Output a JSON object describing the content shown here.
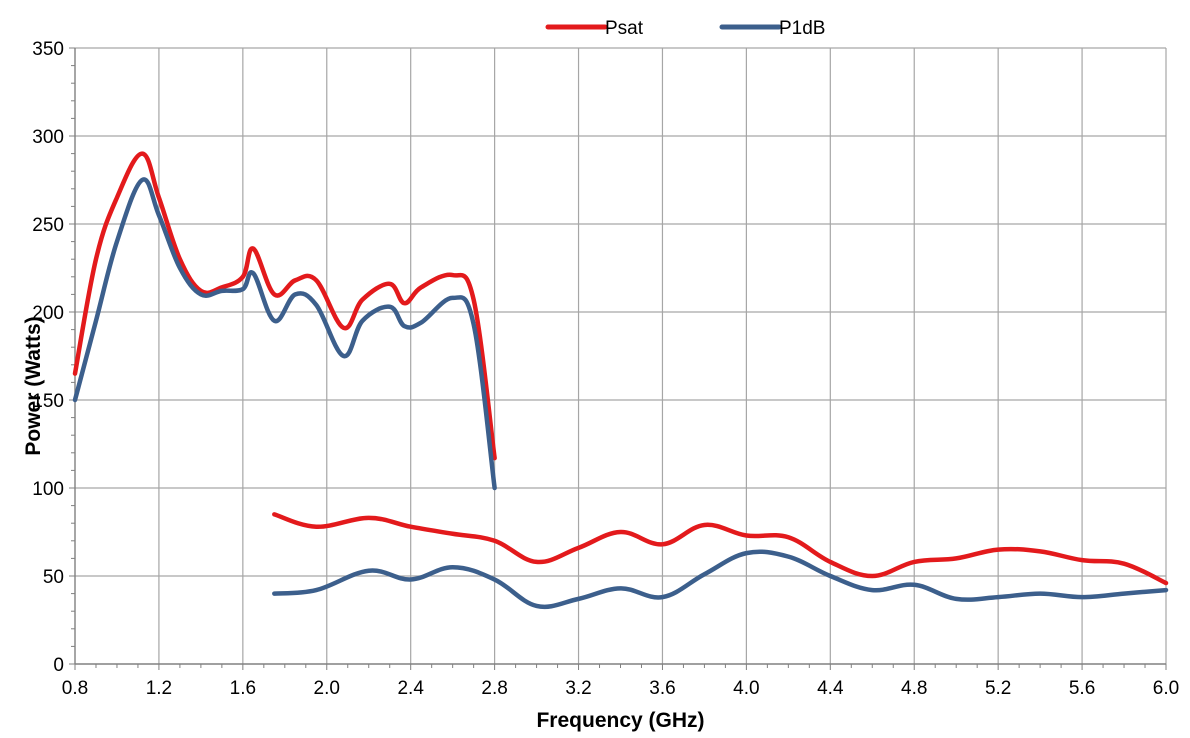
{
  "chart_data": {
    "type": "line",
    "title": "",
    "xlabel": "Frequency (GHz)",
    "ylabel": "Power (Watts)",
    "xlim": [
      0.8,
      6.0
    ],
    "ylim": [
      0,
      350
    ],
    "x_ticks": [
      0.8,
      1.2,
      1.6,
      2.0,
      2.4,
      2.8,
      3.2,
      3.6,
      4.0,
      4.4,
      4.8,
      5.2,
      5.6,
      6.0
    ],
    "x_tick_labels": [
      "0.8",
      "1.2",
      "1.6",
      "2.0",
      "2.4",
      "2.8",
      "3.2",
      "3.6",
      "4.0",
      "4.4",
      "4.8",
      "5.2",
      "5.6",
      "6.0"
    ],
    "y_ticks": [
      0,
      50,
      100,
      150,
      200,
      250,
      300,
      350
    ],
    "y_tick_labels": [
      "0",
      "50",
      "100",
      "150",
      "200",
      "250",
      "300",
      "350"
    ],
    "grid": true,
    "legend_position": "top",
    "series": [
      {
        "name": "Psat",
        "color": "#e31a1c",
        "segments": [
          {
            "x": [
              0.8,
              0.9,
              1.0,
              1.12,
              1.2,
              1.3,
              1.4,
              1.5,
              1.6,
              1.65,
              1.75,
              1.85,
              1.95,
              2.08,
              2.17,
              2.3,
              2.37,
              2.45,
              2.6,
              2.7,
              2.8
            ],
            "y": [
              165,
              230,
              265,
              290,
              265,
              230,
              212,
              214,
              220,
              236,
              210,
              218,
              218,
              191,
              207,
              216,
              205,
              214,
              221,
              207,
              117
            ]
          },
          {
            "x": [
              1.75,
              1.95,
              2.2,
              2.4,
              2.6,
              2.8,
              3.0,
              3.2,
              3.4,
              3.6,
              3.8,
              4.0,
              4.2,
              4.4,
              4.6,
              4.8,
              5.0,
              5.2,
              5.4,
              5.6,
              5.8,
              6.0
            ],
            "y": [
              85,
              78,
              83,
              78,
              74,
              70,
              58,
              66,
              75,
              68,
              79,
              73,
              72,
              58,
              50,
              58,
              60,
              65,
              64,
              59,
              57,
              46
            ]
          }
        ]
      },
      {
        "name": "P1dB",
        "color": "#3c5f8c",
        "segments": [
          {
            "x": [
              0.8,
              0.9,
              1.0,
              1.12,
              1.2,
              1.3,
              1.4,
              1.5,
              1.6,
              1.65,
              1.75,
              1.85,
              1.95,
              2.08,
              2.17,
              2.3,
              2.37,
              2.45,
              2.6,
              2.7,
              2.8
            ],
            "y": [
              150,
              195,
              240,
              275,
              255,
              225,
              210,
              212,
              213,
              222,
              195,
              210,
              204,
              175,
              195,
              203,
              192,
              194,
              208,
              193,
              100
            ]
          },
          {
            "x": [
              1.75,
              1.95,
              2.2,
              2.4,
              2.6,
              2.8,
              3.0,
              3.2,
              3.4,
              3.6,
              3.8,
              4.0,
              4.2,
              4.4,
              4.6,
              4.8,
              5.0,
              5.2,
              5.4,
              5.6,
              5.8,
              6.0
            ],
            "y": [
              40,
              42,
              53,
              48,
              55,
              48,
              33,
              37,
              43,
              38,
              51,
              63,
              61,
              50,
              42,
              45,
              37,
              38,
              40,
              38,
              40,
              42
            ]
          }
        ]
      }
    ]
  }
}
